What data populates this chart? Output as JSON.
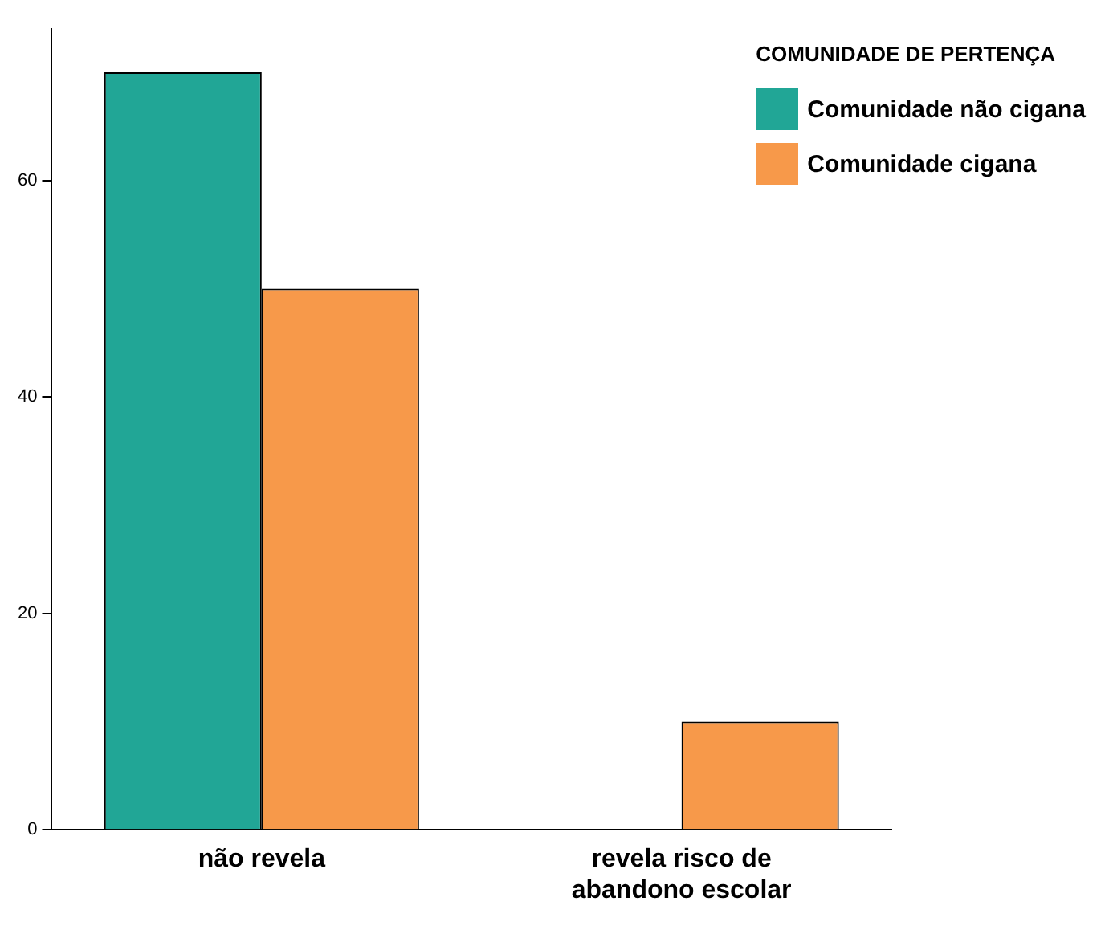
{
  "chart_data": {
    "type": "bar",
    "categories": [
      "não revela",
      "revela risco de abandono escolar"
    ],
    "series": [
      {
        "name": "Comunidade não cigana",
        "color": "#21a696",
        "values": [
          70,
          null
        ]
      },
      {
        "name": "Comunidade cigana",
        "color": "#f7994a",
        "values": [
          50,
          10
        ]
      }
    ],
    "legend_title": "COMUNIDADE DE PERTENÇA",
    "legend": "top right",
    "ylim": [
      0,
      74
    ],
    "yticks": [
      0,
      20,
      40,
      60
    ],
    "grid": false
  }
}
